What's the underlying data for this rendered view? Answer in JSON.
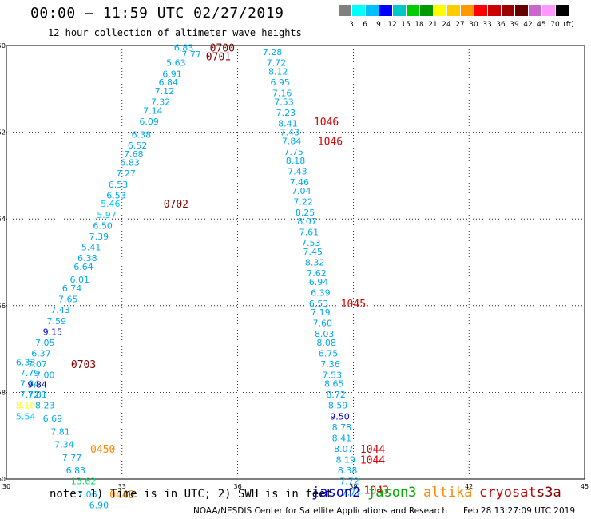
{
  "header": {
    "title": "00:00 — 11:59 UTC 02/27/2019",
    "subtitle": "12 hour collection of altimeter wave heights"
  },
  "color_scale": {
    "colors": [
      "#808080",
      "#00ffff",
      "#00bfff",
      "#0000ff",
      "#00c8c8",
      "#00cc00",
      "#009900",
      "#ffff00",
      "#ffcc00",
      "#ff9900",
      "#ff0000",
      "#cc0000",
      "#990000",
      "#660000",
      "#cc66cc",
      "#ff99ff",
      "#000000"
    ],
    "labels": [
      "3",
      "6",
      "9",
      "12",
      "15",
      "18",
      "21",
      "24",
      "27",
      "30",
      "33",
      "36",
      "39",
      "42",
      "45",
      "70",
      "(ft)"
    ]
  },
  "note": "note: 1) Time is in UTC; 2) SWH is in feet",
  "satellites": [
    {
      "name": "jason2",
      "color": "#0000cc"
    },
    {
      "name": "jason3",
      "color": "#00aa00"
    },
    {
      "name": "altika",
      "color": "#ff8800"
    },
    {
      "name": "cryosat",
      "color": "#cc0000"
    },
    {
      "name": "s3a",
      "color": "#880000"
    }
  ],
  "credit": "NOAA/NESDIS Center for Satellite Applications and Research",
  "timestamp": "Feb 28 13:27:09 UTC 2019",
  "chart_data": {
    "type": "scatter",
    "xlim": [
      30,
      45
    ],
    "ylim": [
      -60,
      -50
    ],
    "x_ticks": [
      30,
      33,
      36,
      39,
      42,
      45
    ],
    "y_ticks": [
      -50,
      -52,
      -54,
      -56,
      -58,
      -60
    ],
    "grid": true,
    "swh_points": [
      {
        "x": 34.6,
        "y": -50.05,
        "v": "6.83",
        "c": "#00aaee"
      },
      {
        "x": 34.8,
        "y": -50.2,
        "v": "7.77",
        "c": "#00aaee"
      },
      {
        "x": 34.4,
        "y": -50.4,
        "v": "5.63",
        "c": "#00aaee"
      },
      {
        "x": 34.3,
        "y": -50.65,
        "v": "6.91",
        "c": "#00aaee"
      },
      {
        "x": 34.2,
        "y": -50.85,
        "v": "6.84",
        "c": "#00aaee"
      },
      {
        "x": 34.1,
        "y": -51.05,
        "v": "7.12",
        "c": "#00aaee"
      },
      {
        "x": 34.0,
        "y": -51.3,
        "v": "7.32",
        "c": "#00aaee"
      },
      {
        "x": 33.8,
        "y": -51.5,
        "v": "7.14",
        "c": "#00aaee"
      },
      {
        "x": 33.7,
        "y": -51.75,
        "v": "6.09",
        "c": "#00aaee"
      },
      {
        "x": 33.5,
        "y": -52.05,
        "v": "6.38",
        "c": "#00aaee"
      },
      {
        "x": 33.4,
        "y": -52.3,
        "v": "6.52",
        "c": "#00aaee"
      },
      {
        "x": 33.3,
        "y": -52.5,
        "v": "7.68",
        "c": "#00aaee"
      },
      {
        "x": 33.2,
        "y": -52.7,
        "v": "6.83",
        "c": "#00aaee"
      },
      {
        "x": 33.1,
        "y": -52.95,
        "v": "7.27",
        "c": "#00aaee"
      },
      {
        "x": 32.9,
        "y": -53.2,
        "v": "6.53",
        "c": "#00aaee"
      },
      {
        "x": 32.85,
        "y": -53.45,
        "v": "6.53",
        "c": "#00aaee"
      },
      {
        "x": 32.7,
        "y": -53.65,
        "v": "5.46",
        "c": "#00ccff"
      },
      {
        "x": 32.6,
        "y": -53.9,
        "v": "5.97",
        "c": "#00ccff"
      },
      {
        "x": 32.5,
        "y": -54.15,
        "v": "6.50",
        "c": "#00aaee"
      },
      {
        "x": 32.4,
        "y": -54.4,
        "v": "7.39",
        "c": "#00aaee"
      },
      {
        "x": 32.2,
        "y": -54.65,
        "v": "5.41",
        "c": "#00aaee"
      },
      {
        "x": 32.1,
        "y": -54.9,
        "v": "6.38",
        "c": "#00aaee"
      },
      {
        "x": 32.0,
        "y": -55.1,
        "v": "6.64",
        "c": "#00aaee"
      },
      {
        "x": 31.9,
        "y": -55.4,
        "v": "6.01",
        "c": "#00aaee"
      },
      {
        "x": 31.7,
        "y": -55.6,
        "v": "6.74",
        "c": "#00aaee"
      },
      {
        "x": 31.6,
        "y": -55.85,
        "v": "7.65",
        "c": "#00aaee"
      },
      {
        "x": 31.4,
        "y": -56.1,
        "v": "7.43",
        "c": "#00aaee"
      },
      {
        "x": 31.3,
        "y": -56.35,
        "v": "7.59",
        "c": "#00aaee"
      },
      {
        "x": 31.2,
        "y": -56.6,
        "v": "9.15",
        "c": "#0000cc"
      },
      {
        "x": 31.0,
        "y": -56.85,
        "v": "7.05",
        "c": "#00aaee"
      },
      {
        "x": 30.9,
        "y": -57.1,
        "v": "6.37",
        "c": "#00aaee"
      },
      {
        "x": 30.8,
        "y": -57.35,
        "v": "7.07",
        "c": "#00aaee"
      },
      {
        "x": 30.5,
        "y": -57.3,
        "v": "6.33",
        "c": "#00aaee"
      },
      {
        "x": 30.6,
        "y": -57.55,
        "v": "7.79",
        "c": "#00aaee"
      },
      {
        "x": 31.0,
        "y": -57.6,
        "v": "7.00",
        "c": "#00aaee"
      },
      {
        "x": 30.6,
        "y": -57.8,
        "v": "7.84",
        "c": "#00aaee"
      },
      {
        "x": 30.8,
        "y": -57.82,
        "v": "9.84",
        "c": "#0000cc"
      },
      {
        "x": 30.6,
        "y": -58.05,
        "v": "7.72",
        "c": "#00aaee"
      },
      {
        "x": 30.8,
        "y": -58.05,
        "v": "7.81",
        "c": "#00aaee"
      },
      {
        "x": 30.5,
        "y": -58.3,
        "v": "8.10",
        "c": "#ffff00"
      },
      {
        "x": 31.0,
        "y": -58.3,
        "v": "8.23",
        "c": "#00aaee"
      },
      {
        "x": 30.5,
        "y": -58.55,
        "v": "5.54",
        "c": "#00ccff"
      },
      {
        "x": 31.2,
        "y": -58.6,
        "v": "6.69",
        "c": "#00aaee"
      },
      {
        "x": 31.4,
        "y": -58.9,
        "v": "7.81",
        "c": "#00aaee"
      },
      {
        "x": 31.5,
        "y": -59.2,
        "v": "7.34",
        "c": "#00aaee"
      },
      {
        "x": 31.7,
        "y": -59.5,
        "v": "7.77",
        "c": "#00aaee"
      },
      {
        "x": 31.8,
        "y": -59.8,
        "v": "6.83",
        "c": "#00aaee"
      },
      {
        "x": 32.0,
        "y": -60.05,
        "v": "13.62",
        "c": "#00dd66"
      },
      {
        "x": 32.1,
        "y": -60.35,
        "v": "7.06",
        "c": "#00aaee"
      },
      {
        "x": 32.4,
        "y": -60.6,
        "v": "6.90",
        "c": "#00aaee"
      },
      {
        "x": 36.9,
        "y": -50.15,
        "v": "7.28",
        "c": "#00aaee"
      },
      {
        "x": 37.0,
        "y": -50.4,
        "v": "7.72",
        "c": "#00aaee"
      },
      {
        "x": 37.05,
        "y": -50.6,
        "v": "8.12",
        "c": "#00aaee"
      },
      {
        "x": 37.1,
        "y": -50.85,
        "v": "6.95",
        "c": "#00aaee"
      },
      {
        "x": 37.15,
        "y": -51.1,
        "v": "7.16",
        "c": "#00aaee"
      },
      {
        "x": 37.2,
        "y": -51.3,
        "v": "7.53",
        "c": "#00aaee"
      },
      {
        "x": 37.25,
        "y": -51.55,
        "v": "7.23",
        "c": "#00aaee"
      },
      {
        "x": 37.3,
        "y": -51.8,
        "v": "8.41",
        "c": "#00aaee"
      },
      {
        "x": 37.35,
        "y": -52.0,
        "v": "7.43",
        "c": "#00aaee"
      },
      {
        "x": 37.4,
        "y": -52.2,
        "v": "7.84",
        "c": "#00aaee"
      },
      {
        "x": 37.45,
        "y": -52.45,
        "v": "7.75",
        "c": "#00aaee"
      },
      {
        "x": 37.5,
        "y": -52.65,
        "v": "8.18",
        "c": "#00aaee"
      },
      {
        "x": 37.55,
        "y": -52.9,
        "v": "7.43",
        "c": "#00aaee"
      },
      {
        "x": 37.6,
        "y": -53.15,
        "v": "7.46",
        "c": "#00aaee"
      },
      {
        "x": 37.65,
        "y": -53.35,
        "v": "7.04",
        "c": "#00aaee"
      },
      {
        "x": 37.7,
        "y": -53.6,
        "v": "7.22",
        "c": "#00aaee"
      },
      {
        "x": 37.75,
        "y": -53.85,
        "v": "8.25",
        "c": "#00aaee"
      },
      {
        "x": 37.8,
        "y": -54.05,
        "v": "8.07",
        "c": "#00aaee"
      },
      {
        "x": 37.85,
        "y": -54.3,
        "v": "7.61",
        "c": "#00aaee"
      },
      {
        "x": 37.9,
        "y": -54.55,
        "v": "7.53",
        "c": "#00aaee"
      },
      {
        "x": 37.95,
        "y": -54.75,
        "v": "7.45",
        "c": "#00aaee"
      },
      {
        "x": 38.0,
        "y": -55.0,
        "v": "8.32",
        "c": "#00aaee"
      },
      {
        "x": 38.05,
        "y": -55.25,
        "v": "7.62",
        "c": "#00aaee"
      },
      {
        "x": 38.1,
        "y": -55.45,
        "v": "6.94",
        "c": "#00aaee"
      },
      {
        "x": 38.15,
        "y": -55.7,
        "v": "6.39",
        "c": "#00aaee"
      },
      {
        "x": 38.1,
        "y": -55.95,
        "v": "6.53",
        "c": "#00aaee"
      },
      {
        "x": 38.15,
        "y": -56.15,
        "v": "7.19",
        "c": "#00aaee"
      },
      {
        "x": 38.2,
        "y": -56.4,
        "v": "7.60",
        "c": "#00aaee"
      },
      {
        "x": 38.25,
        "y": -56.65,
        "v": "8.03",
        "c": "#00aaee"
      },
      {
        "x": 38.3,
        "y": -56.85,
        "v": "8.08",
        "c": "#00aaee"
      },
      {
        "x": 38.35,
        "y": -57.1,
        "v": "6.75",
        "c": "#00aaee"
      },
      {
        "x": 38.4,
        "y": -57.35,
        "v": "7.36",
        "c": "#00aaee"
      },
      {
        "x": 38.45,
        "y": -57.6,
        "v": "7.53",
        "c": "#00aaee"
      },
      {
        "x": 38.5,
        "y": -57.8,
        "v": "8.65",
        "c": "#00aaee"
      },
      {
        "x": 38.55,
        "y": -58.05,
        "v": "8.72",
        "c": "#00aaee"
      },
      {
        "x": 38.6,
        "y": -58.3,
        "v": "8.59",
        "c": "#00aaee"
      },
      {
        "x": 38.65,
        "y": -58.55,
        "v": "9.50",
        "c": "#0000cc"
      },
      {
        "x": 38.7,
        "y": -58.8,
        "v": "8.78",
        "c": "#00aaee"
      },
      {
        "x": 38.7,
        "y": -59.05,
        "v": "8.41",
        "c": "#00aaee"
      },
      {
        "x": 38.75,
        "y": -59.3,
        "v": "8.07",
        "c": "#00aaee"
      },
      {
        "x": 38.8,
        "y": -59.55,
        "v": "8.19",
        "c": "#00aaee"
      },
      {
        "x": 38.85,
        "y": -59.8,
        "v": "8.38",
        "c": "#00aaee"
      },
      {
        "x": 38.9,
        "y": -60.05,
        "v": "7.72",
        "c": "#00aaee"
      },
      {
        "x": 38.95,
        "y": -60.3,
        "v": "7.77",
        "c": "#00aaee"
      }
    ],
    "time_labels": [
      {
        "x": 35.6,
        "y": -50.05,
        "t": "0700",
        "c": "#880000"
      },
      {
        "x": 35.5,
        "y": -50.25,
        "t": "0701",
        "c": "#880000"
      },
      {
        "x": 34.4,
        "y": -53.65,
        "t": "0702",
        "c": "#880000"
      },
      {
        "x": 32.0,
        "y": -57.35,
        "t": "0703",
        "c": "#880000"
      },
      {
        "x": 38.3,
        "y": -51.75,
        "t": "1046",
        "c": "#dd0000"
      },
      {
        "x": 38.4,
        "y": -52.2,
        "t": "1046",
        "c": "#dd0000"
      },
      {
        "x": 39.0,
        "y": -55.95,
        "t": "1045",
        "c": "#dd0000"
      },
      {
        "x": 39.5,
        "y": -59.3,
        "t": "1044",
        "c": "#dd0000"
      },
      {
        "x": 39.5,
        "y": -59.55,
        "t": "1044",
        "c": "#dd0000"
      },
      {
        "x": 39.6,
        "y": -60.25,
        "t": "1043",
        "c": "#dd0000"
      },
      {
        "x": 32.5,
        "y": -59.3,
        "t": "0450",
        "c": "#ff8800"
      },
      {
        "x": 33.0,
        "y": -60.35,
        "t": "0449",
        "c": "#ff8800"
      }
    ]
  }
}
